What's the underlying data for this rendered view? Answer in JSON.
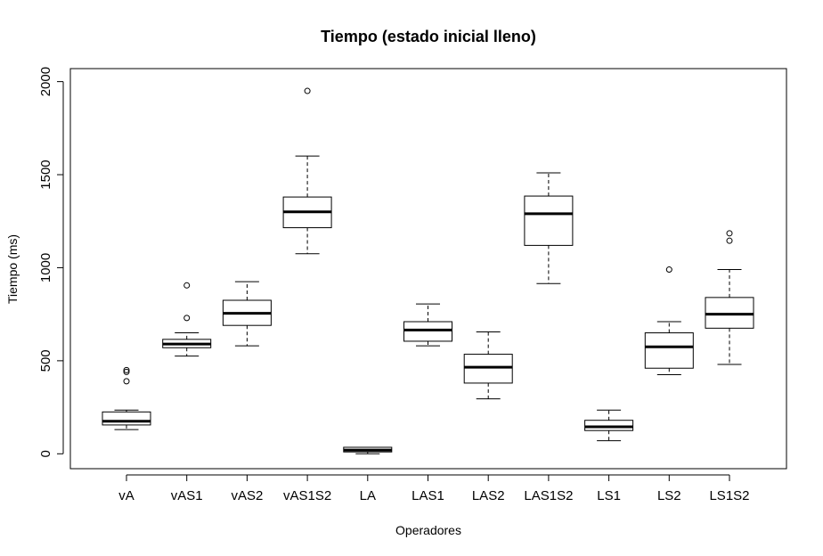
{
  "chart_data": {
    "type": "boxplot",
    "title": "Tiempo (estado inicial lleno)",
    "xlabel": "Operadores",
    "ylabel": "Tiempo (ms)",
    "ylim": [
      -80,
      2070
    ],
    "yticks": [
      0,
      500,
      1000,
      1500,
      2000
    ],
    "grid": false,
    "categories": [
      "vA",
      "vAS1",
      "vAS2",
      "vAS1S2",
      "LA",
      "LAS1",
      "LAS2",
      "LAS1S2",
      "LS1",
      "LS2",
      "LS1S2"
    ],
    "boxes": [
      {
        "name": "vA",
        "whisker_low": 130,
        "q1": 155,
        "median": 175,
        "q3": 225,
        "whisker_high": 235,
        "outliers": [
          390,
          440,
          450
        ]
      },
      {
        "name": "vAS1",
        "whisker_low": 525,
        "q1": 570,
        "median": 590,
        "q3": 615,
        "whisker_high": 650,
        "outliers": [
          730,
          905
        ]
      },
      {
        "name": "vAS2",
        "whisker_low": 580,
        "q1": 690,
        "median": 755,
        "q3": 825,
        "whisker_high": 925,
        "outliers": []
      },
      {
        "name": "vAS1S2",
        "whisker_low": 1075,
        "q1": 1215,
        "median": 1300,
        "q3": 1380,
        "whisker_high": 1600,
        "outliers": [
          1950
        ]
      },
      {
        "name": "LA",
        "whisker_low": 0,
        "q1": 10,
        "median": 20,
        "q3": 35,
        "whisker_high": 35,
        "outliers": []
      },
      {
        "name": "LAS1",
        "whisker_low": 580,
        "q1": 605,
        "median": 665,
        "q3": 710,
        "whisker_high": 805,
        "outliers": []
      },
      {
        "name": "LAS2",
        "whisker_low": 295,
        "q1": 380,
        "median": 465,
        "q3": 535,
        "whisker_high": 655,
        "outliers": []
      },
      {
        "name": "LAS1S2",
        "whisker_low": 915,
        "q1": 1120,
        "median": 1290,
        "q3": 1385,
        "whisker_high": 1510,
        "outliers": []
      },
      {
        "name": "LS1",
        "whisker_low": 70,
        "q1": 125,
        "median": 145,
        "q3": 180,
        "whisker_high": 235,
        "outliers": []
      },
      {
        "name": "LS2",
        "whisker_low": 425,
        "q1": 460,
        "median": 575,
        "q3": 650,
        "whisker_high": 710,
        "outliers": [
          990
        ]
      },
      {
        "name": "LS1S2",
        "whisker_low": 480,
        "q1": 675,
        "median": 750,
        "q3": 840,
        "whisker_high": 990,
        "outliers": [
          1145,
          1185
        ]
      }
    ]
  }
}
